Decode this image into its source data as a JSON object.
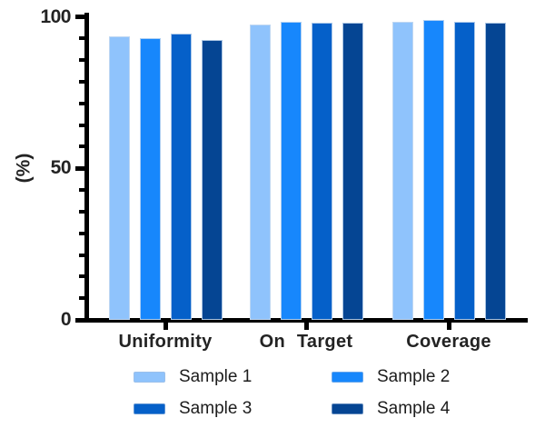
{
  "chart_data": {
    "type": "bar",
    "ylabel": "(%)",
    "categories": [
      "Uniformity",
      "On Target",
      "Coverage"
    ],
    "series": [
      {
        "name": "Sample 1",
        "color": "#8FC3FC",
        "values": [
          93.5,
          97.5,
          98.5
        ]
      },
      {
        "name": "Sample 2",
        "color": "#1787FC",
        "values": [
          93.0,
          98.5,
          99.0
        ]
      },
      {
        "name": "Sample 3",
        "color": "#0560C9",
        "values": [
          94.5,
          98.0,
          98.5
        ]
      },
      {
        "name": "Sample 4",
        "color": "#054593",
        "values": [
          92.5,
          98.0,
          98.0
        ]
      }
    ],
    "ylim": [
      0,
      100
    ],
    "yticks": [
      0,
      50,
      100
    ],
    "minor_ticks_between_majors": 6,
    "grid": false,
    "legend_position": "bottom",
    "axis_color": "#000000",
    "text_color": "#232323",
    "bar_edge_color": "#C8DAF0"
  }
}
